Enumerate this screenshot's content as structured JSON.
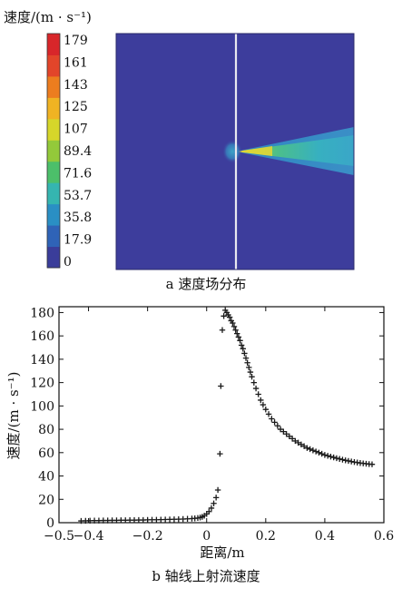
{
  "panel_a": {
    "colorbar_title": "速度/(m · s⁻¹)",
    "colorbar_ticks": [
      "179",
      "161",
      "143",
      "125",
      "107",
      "89.4",
      "71.6",
      "53.7",
      "35.8",
      "17.9",
      "0"
    ],
    "colormap": [
      "#3a3d9a",
      "#2f63b7",
      "#2a8fc4",
      "#35b5b0",
      "#4cbf6a",
      "#93c93a",
      "#d6d62a",
      "#f0b323",
      "#ec7d1f",
      "#e2452a",
      "#d8262a"
    ],
    "background_color": "#3d3d9c",
    "caption": "a 速度场分布"
  },
  "chart_data": {
    "type": "scatter",
    "marker": "+",
    "xlabel": "距离/m",
    "ylabel": "速度/(m · s⁻¹)",
    "xlim": [
      -0.5,
      0.6
    ],
    "ylim": [
      0,
      185
    ],
    "xticks": [
      -0.5,
      -0.4,
      -0.2,
      0,
      0.2,
      0.4,
      0.6
    ],
    "xtick_labels": [
      "−0.5",
      "−0.4",
      "−0.2",
      "0",
      "0.2",
      "0.4",
      "0.6"
    ],
    "yticks": [
      0,
      20,
      40,
      60,
      80,
      100,
      120,
      140,
      160,
      180
    ],
    "grid": false,
    "caption": "b 轴线上射流速度",
    "points": [
      [
        -0.425,
        1.5
      ],
      [
        -0.41,
        1.6
      ],
      [
        -0.395,
        1.7
      ],
      [
        -0.38,
        1.8
      ],
      [
        -0.365,
        1.8
      ],
      [
        -0.35,
        1.9
      ],
      [
        -0.335,
        1.9
      ],
      [
        -0.32,
        2.0
      ],
      [
        -0.305,
        2.0
      ],
      [
        -0.29,
        2.1
      ],
      [
        -0.275,
        2.1
      ],
      [
        -0.26,
        2.2
      ],
      [
        -0.245,
        2.2
      ],
      [
        -0.23,
        2.3
      ],
      [
        -0.215,
        2.3
      ],
      [
        -0.2,
        2.4
      ],
      [
        -0.185,
        2.5
      ],
      [
        -0.17,
        2.5
      ],
      [
        -0.155,
        2.6
      ],
      [
        -0.14,
        2.7
      ],
      [
        -0.125,
        2.8
      ],
      [
        -0.11,
        2.9
      ],
      [
        -0.095,
        3.0
      ],
      [
        -0.08,
        3.1
      ],
      [
        -0.065,
        3.3
      ],
      [
        -0.05,
        3.5
      ],
      [
        -0.04,
        3.7
      ],
      [
        -0.03,
        4.0
      ],
      [
        -0.022,
        4.4
      ],
      [
        -0.015,
        5.0
      ],
      [
        -0.008,
        6.0
      ],
      [
        0.0,
        7.5
      ],
      [
        0.008,
        9.5
      ],
      [
        0.016,
        12.5
      ],
      [
        0.024,
        16.5
      ],
      [
        0.032,
        21.5
      ],
      [
        0.038,
        28.0
      ],
      [
        0.045,
        59.0
      ],
      [
        0.048,
        117.0
      ],
      [
        0.053,
        165.0
      ],
      [
        0.058,
        177.0
      ],
      [
        0.063,
        182.0
      ],
      [
        0.068,
        180.0
      ],
      [
        0.073,
        178.0
      ],
      [
        0.078,
        176.0
      ],
      [
        0.083,
        173.0
      ],
      [
        0.088,
        171.0
      ],
      [
        0.093,
        168.0
      ],
      [
        0.098,
        165.0
      ],
      [
        0.103,
        162.0
      ],
      [
        0.108,
        159.0
      ],
      [
        0.113,
        156.0
      ],
      [
        0.118,
        152.0
      ],
      [
        0.123,
        149.0
      ],
      [
        0.128,
        145.0
      ],
      [
        0.133,
        141.0
      ],
      [
        0.138,
        137.0
      ],
      [
        0.143,
        133.0
      ],
      [
        0.148,
        129.0
      ],
      [
        0.153,
        125.0
      ],
      [
        0.16,
        120.0
      ],
      [
        0.167,
        115.0
      ],
      [
        0.175,
        110.0
      ],
      [
        0.183,
        105.0
      ],
      [
        0.191,
        101.0
      ],
      [
        0.2,
        97.0
      ],
      [
        0.21,
        93.0
      ],
      [
        0.22,
        89.0
      ],
      [
        0.23,
        86.0
      ],
      [
        0.24,
        83.0
      ],
      [
        0.25,
        80.0
      ],
      [
        0.26,
        78.0
      ],
      [
        0.27,
        76.0
      ],
      [
        0.28,
        74.0
      ],
      [
        0.29,
        72.0
      ],
      [
        0.3,
        70.0
      ],
      [
        0.31,
        68.5
      ],
      [
        0.32,
        67.0
      ],
      [
        0.33,
        65.5
      ],
      [
        0.34,
        64.0
      ],
      [
        0.35,
        63.0
      ],
      [
        0.36,
        62.0
      ],
      [
        0.37,
        61.0
      ],
      [
        0.38,
        60.0
      ],
      [
        0.39,
        59.0
      ],
      [
        0.4,
        58.0
      ],
      [
        0.41,
        57.3
      ],
      [
        0.42,
        56.6
      ],
      [
        0.43,
        55.9
      ],
      [
        0.44,
        55.2
      ],
      [
        0.45,
        54.6
      ],
      [
        0.46,
        54.0
      ],
      [
        0.47,
        53.4
      ],
      [
        0.48,
        52.9
      ],
      [
        0.49,
        52.4
      ],
      [
        0.5,
        51.9
      ],
      [
        0.51,
        51.5
      ],
      [
        0.52,
        51.1
      ],
      [
        0.53,
        50.8
      ],
      [
        0.54,
        50.5
      ],
      [
        0.55,
        50.2
      ],
      [
        0.56,
        50.0
      ]
    ]
  }
}
